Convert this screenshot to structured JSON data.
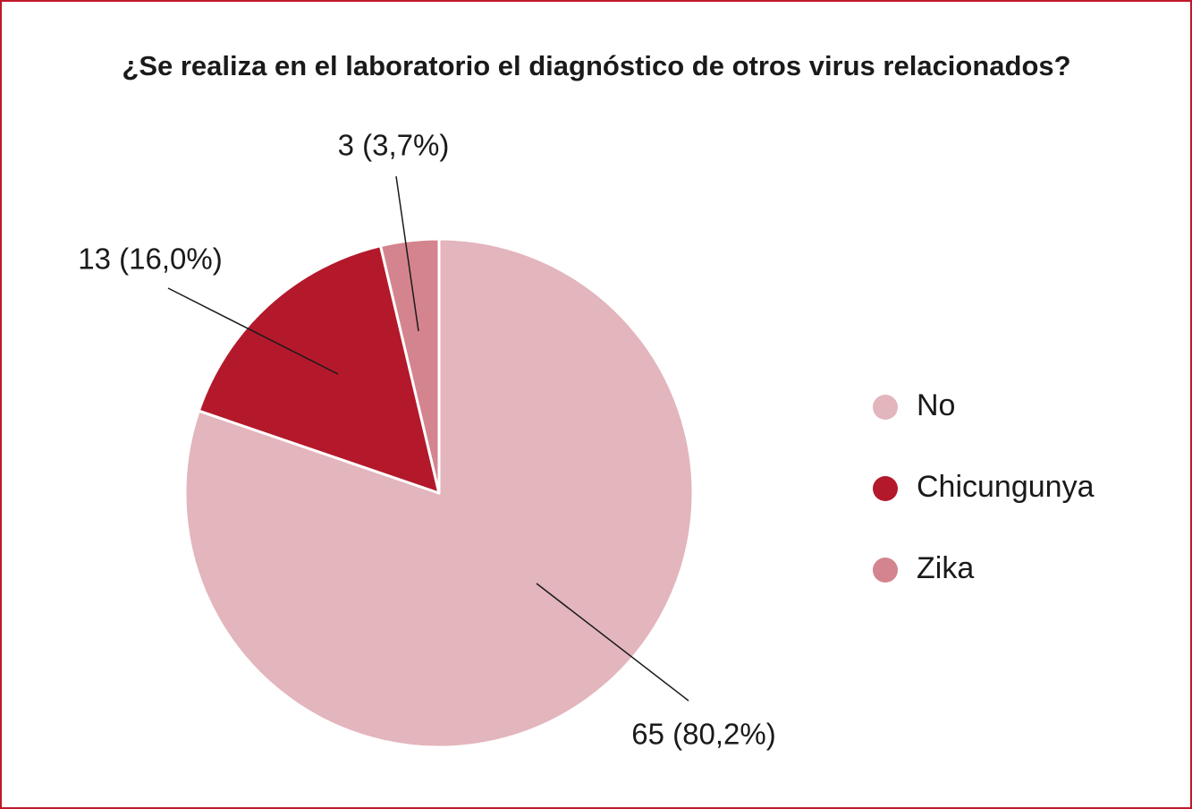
{
  "chart_data": {
    "type": "pie",
    "title": "¿Se realiza en el laboratorio el diagnóstico de otros virus relacionados?",
    "categories": [
      "No",
      "Chicungunya",
      "Zika"
    ],
    "values": [
      65,
      13,
      3
    ],
    "value_labels": [
      "65 (80,2%)",
      "13 (16,0%)",
      "3 (3,7%)"
    ],
    "colors": [
      "#e3b5bc",
      "#b3192b",
      "#d4848e"
    ]
  }
}
